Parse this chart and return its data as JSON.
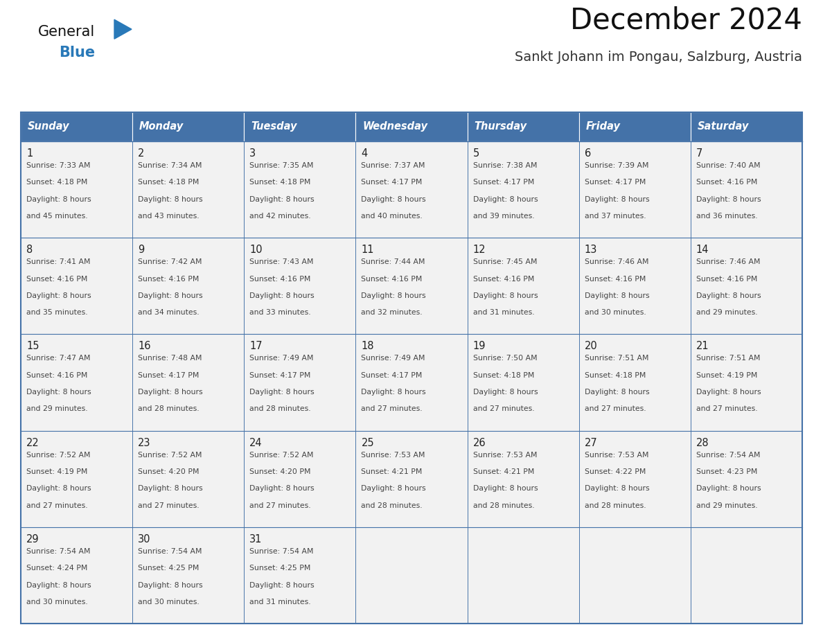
{
  "title": "December 2024",
  "subtitle": "Sankt Johann im Pongau, Salzburg, Austria",
  "days_of_week": [
    "Sunday",
    "Monday",
    "Tuesday",
    "Wednesday",
    "Thursday",
    "Friday",
    "Saturday"
  ],
  "header_bg": "#4472a8",
  "header_text": "#FFFFFF",
  "cell_bg": "#f2f2f2",
  "cell_bg_empty": "#f2f2f2",
  "border_color": "#4472a8",
  "row_border_color": "#4472a8",
  "day_number_color": "#222222",
  "cell_text_color": "#444444",
  "title_color": "#111111",
  "subtitle_color": "#333333",
  "logo_general_color": "#111111",
  "logo_blue_color": "#2979b8",
  "calendar_data": [
    [
      {
        "day": 1,
        "sunrise": "7:33 AM",
        "sunset": "4:18 PM",
        "daylight_hours": 8,
        "daylight_minutes": 45
      },
      {
        "day": 2,
        "sunrise": "7:34 AM",
        "sunset": "4:18 PM",
        "daylight_hours": 8,
        "daylight_minutes": 43
      },
      {
        "day": 3,
        "sunrise": "7:35 AM",
        "sunset": "4:18 PM",
        "daylight_hours": 8,
        "daylight_minutes": 42
      },
      {
        "day": 4,
        "sunrise": "7:37 AM",
        "sunset": "4:17 PM",
        "daylight_hours": 8,
        "daylight_minutes": 40
      },
      {
        "day": 5,
        "sunrise": "7:38 AM",
        "sunset": "4:17 PM",
        "daylight_hours": 8,
        "daylight_minutes": 39
      },
      {
        "day": 6,
        "sunrise": "7:39 AM",
        "sunset": "4:17 PM",
        "daylight_hours": 8,
        "daylight_minutes": 37
      },
      {
        "day": 7,
        "sunrise": "7:40 AM",
        "sunset": "4:16 PM",
        "daylight_hours": 8,
        "daylight_minutes": 36
      }
    ],
    [
      {
        "day": 8,
        "sunrise": "7:41 AM",
        "sunset": "4:16 PM",
        "daylight_hours": 8,
        "daylight_minutes": 35
      },
      {
        "day": 9,
        "sunrise": "7:42 AM",
        "sunset": "4:16 PM",
        "daylight_hours": 8,
        "daylight_minutes": 34
      },
      {
        "day": 10,
        "sunrise": "7:43 AM",
        "sunset": "4:16 PM",
        "daylight_hours": 8,
        "daylight_minutes": 33
      },
      {
        "day": 11,
        "sunrise": "7:44 AM",
        "sunset": "4:16 PM",
        "daylight_hours": 8,
        "daylight_minutes": 32
      },
      {
        "day": 12,
        "sunrise": "7:45 AM",
        "sunset": "4:16 PM",
        "daylight_hours": 8,
        "daylight_minutes": 31
      },
      {
        "day": 13,
        "sunrise": "7:46 AM",
        "sunset": "4:16 PM",
        "daylight_hours": 8,
        "daylight_minutes": 30
      },
      {
        "day": 14,
        "sunrise": "7:46 AM",
        "sunset": "4:16 PM",
        "daylight_hours": 8,
        "daylight_minutes": 29
      }
    ],
    [
      {
        "day": 15,
        "sunrise": "7:47 AM",
        "sunset": "4:16 PM",
        "daylight_hours": 8,
        "daylight_minutes": 29
      },
      {
        "day": 16,
        "sunrise": "7:48 AM",
        "sunset": "4:17 PM",
        "daylight_hours": 8,
        "daylight_minutes": 28
      },
      {
        "day": 17,
        "sunrise": "7:49 AM",
        "sunset": "4:17 PM",
        "daylight_hours": 8,
        "daylight_minutes": 28
      },
      {
        "day": 18,
        "sunrise": "7:49 AM",
        "sunset": "4:17 PM",
        "daylight_hours": 8,
        "daylight_minutes": 27
      },
      {
        "day": 19,
        "sunrise": "7:50 AM",
        "sunset": "4:18 PM",
        "daylight_hours": 8,
        "daylight_minutes": 27
      },
      {
        "day": 20,
        "sunrise": "7:51 AM",
        "sunset": "4:18 PM",
        "daylight_hours": 8,
        "daylight_minutes": 27
      },
      {
        "day": 21,
        "sunrise": "7:51 AM",
        "sunset": "4:19 PM",
        "daylight_hours": 8,
        "daylight_minutes": 27
      }
    ],
    [
      {
        "day": 22,
        "sunrise": "7:52 AM",
        "sunset": "4:19 PM",
        "daylight_hours": 8,
        "daylight_minutes": 27
      },
      {
        "day": 23,
        "sunrise": "7:52 AM",
        "sunset": "4:20 PM",
        "daylight_hours": 8,
        "daylight_minutes": 27
      },
      {
        "day": 24,
        "sunrise": "7:52 AM",
        "sunset": "4:20 PM",
        "daylight_hours": 8,
        "daylight_minutes": 27
      },
      {
        "day": 25,
        "sunrise": "7:53 AM",
        "sunset": "4:21 PM",
        "daylight_hours": 8,
        "daylight_minutes": 28
      },
      {
        "day": 26,
        "sunrise": "7:53 AM",
        "sunset": "4:21 PM",
        "daylight_hours": 8,
        "daylight_minutes": 28
      },
      {
        "day": 27,
        "sunrise": "7:53 AM",
        "sunset": "4:22 PM",
        "daylight_hours": 8,
        "daylight_minutes": 28
      },
      {
        "day": 28,
        "sunrise": "7:54 AM",
        "sunset": "4:23 PM",
        "daylight_hours": 8,
        "daylight_minutes": 29
      }
    ],
    [
      {
        "day": 29,
        "sunrise": "7:54 AM",
        "sunset": "4:24 PM",
        "daylight_hours": 8,
        "daylight_minutes": 30
      },
      {
        "day": 30,
        "sunrise": "7:54 AM",
        "sunset": "4:25 PM",
        "daylight_hours": 8,
        "daylight_minutes": 30
      },
      {
        "day": 31,
        "sunrise": "7:54 AM",
        "sunset": "4:25 PM",
        "daylight_hours": 8,
        "daylight_minutes": 31
      },
      null,
      null,
      null,
      null
    ]
  ],
  "fig_width": 11.88,
  "fig_height": 9.18,
  "dpi": 100
}
